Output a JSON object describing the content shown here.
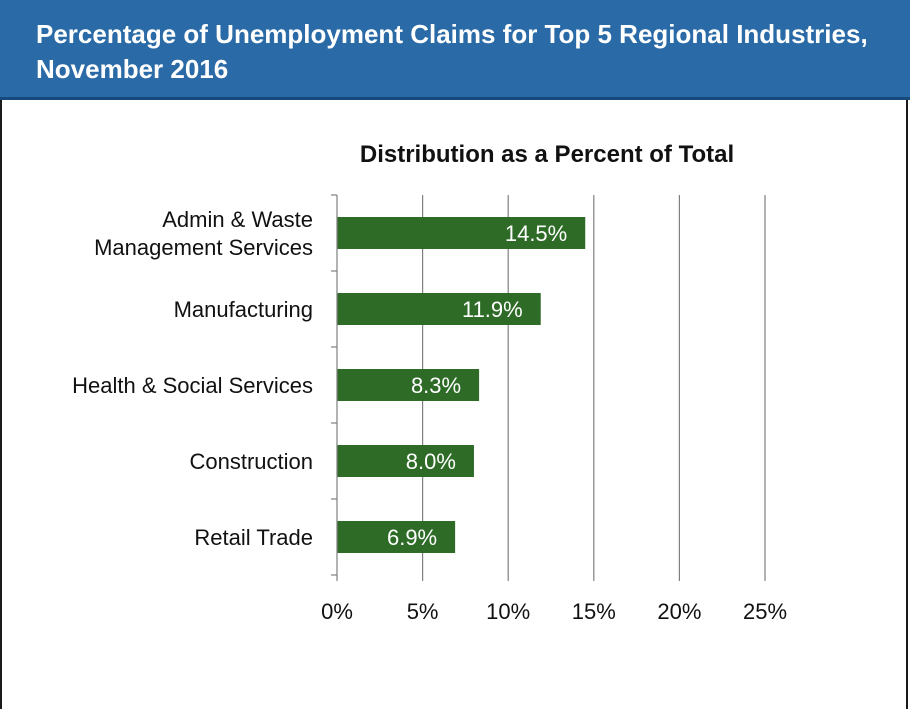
{
  "header": {
    "title": "Percentage of Unemployment Claims for Top 5 Regional Industries, November 2016"
  },
  "colors": {
    "header_bg": "#2a6aa6",
    "header_border": "#164a7c",
    "bar": "#2d6b27",
    "grid": "#808080"
  },
  "chart_data": {
    "type": "bar",
    "orientation": "horizontal",
    "title": "Distribution as a Percent of Total",
    "categories": [
      "Admin & Waste Management Services",
      "Manufacturing",
      "Health & Social Services",
      "Construction",
      "Retail Trade"
    ],
    "category_lines": [
      [
        "Admin & Waste",
        "Management Services"
      ],
      [
        "Manufacturing"
      ],
      [
        "Health & Social Services"
      ],
      [
        "Construction"
      ],
      [
        "Retail Trade"
      ]
    ],
    "values": [
      14.5,
      11.9,
      8.3,
      8.0,
      6.9
    ],
    "data_labels": [
      "14.5%",
      "11.9%",
      "8.3%",
      "8.0%",
      "6.9%"
    ],
    "xlim": [
      0,
      25
    ],
    "x_ticks": [
      0,
      5,
      10,
      15,
      20,
      25
    ],
    "x_tick_labels": [
      "0%",
      "5%",
      "10%",
      "15%",
      "20%",
      "25%"
    ],
    "xlabel": "",
    "ylabel": "",
    "grid": true,
    "legend": "none"
  }
}
